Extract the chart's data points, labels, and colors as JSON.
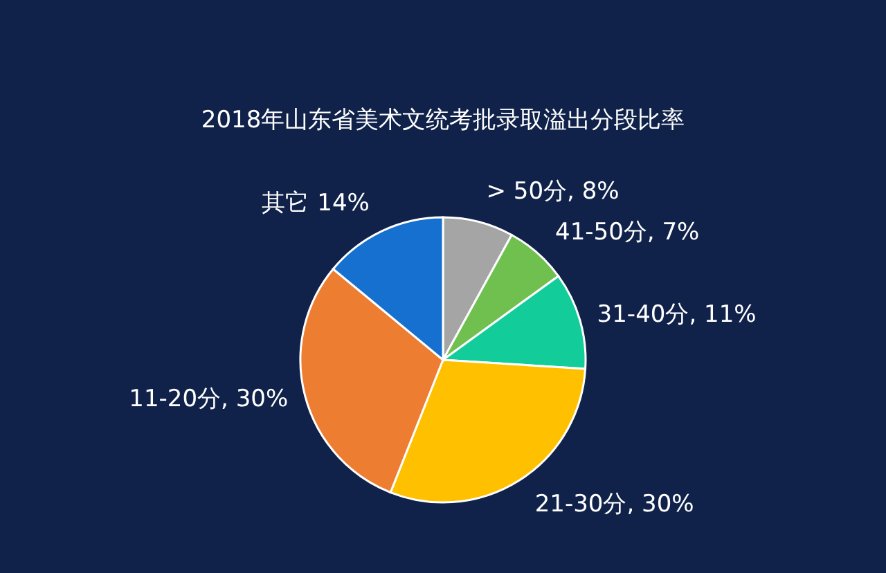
{
  "chart_data": {
    "type": "pie",
    "title": "2018年山东省美术文统考批录取溢出分段比率",
    "categories": [
      "> 50分",
      "41-50分",
      "31-40分",
      "21-30分",
      "11-20分",
      "其它"
    ],
    "values": [
      8,
      7,
      11,
      30,
      30,
      14
    ],
    "colors": [
      "#a5a5a5",
      "#70c050",
      "#12cc99",
      "#ffc000",
      "#ed7d31",
      "#1570d0"
    ],
    "value_labels": [
      ", 8%",
      ", 7%",
      ", 11%",
      ", 30%",
      ", 30%",
      "14%"
    ]
  }
}
